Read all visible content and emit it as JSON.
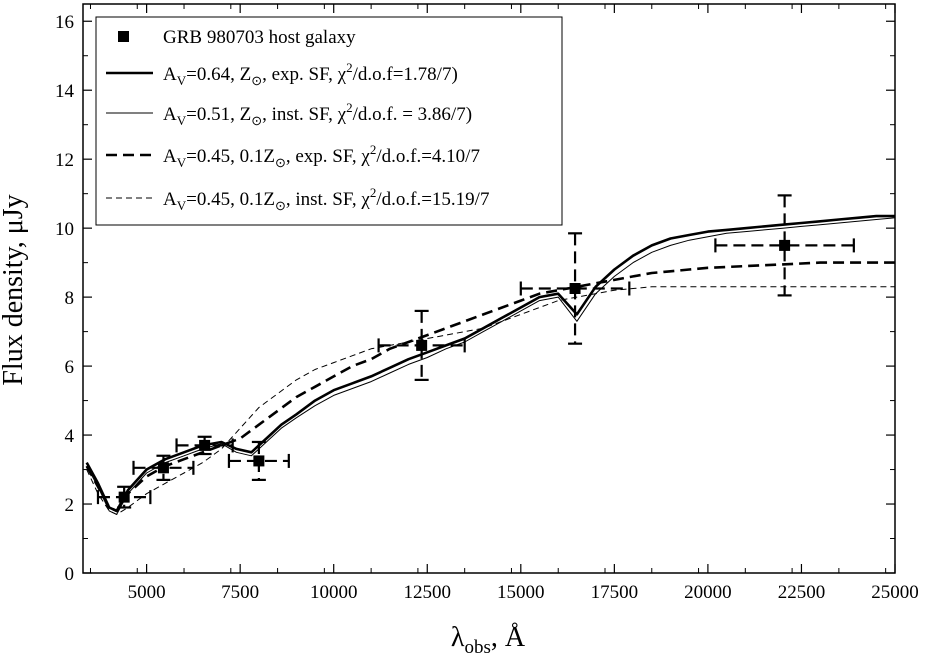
{
  "chart_data": {
    "type": "line",
    "xlabel": "λobs, Å",
    "ylabel": "Flux density, μJy",
    "xlim": [
      3300,
      25000
    ],
    "ylim": [
      0,
      16.5
    ],
    "xticks": [
      5000,
      7500,
      10000,
      12500,
      15000,
      17500,
      20000,
      22500,
      25000
    ],
    "yticks": [
      0,
      2,
      4,
      6,
      8,
      10,
      12,
      14,
      16
    ],
    "grid": false,
    "legend_position": "top-left",
    "points": {
      "name": "GRB 980703 host galaxy",
      "data": [
        {
          "x": 4400,
          "y": 2.2,
          "xerr": 700,
          "yerr": 0.3
        },
        {
          "x": 5450,
          "y": 3.05,
          "xerr": 800,
          "yerr": 0.35
        },
        {
          "x": 6550,
          "y": 3.7,
          "xerr": 750,
          "yerr": 0.25
        },
        {
          "x": 8000,
          "y": 3.25,
          "xerr": 800,
          "yerr": 0.55
        },
        {
          "x": 12350,
          "y": 6.6,
          "xerr": 1150,
          "yerr": 1.0
        },
        {
          "x": 16450,
          "y": 8.25,
          "xerr": 1450,
          "yerr": 1.6
        },
        {
          "x": 22050,
          "y": 9.5,
          "xerr": 1850,
          "yerr": 1.45
        }
      ]
    },
    "series": [
      {
        "name": "AV=0.64, Z⊙, exp. SF, χ2/d.o.f=1.78/7)",
        "style": "thick-solid",
        "x": [
          3400,
          3700,
          4000,
          4200,
          4500,
          5000,
          5500,
          6000,
          6500,
          7000,
          7400,
          7800,
          8200,
          8600,
          9000,
          9500,
          10000,
          10500,
          11000,
          11500,
          12000,
          12500,
          13000,
          13500,
          14000,
          14500,
          15000,
          15500,
          16000,
          16500,
          17000,
          17500,
          18000,
          18500,
          19000,
          19500,
          20000,
          20500,
          21000,
          21500,
          22000,
          22500,
          23000,
          23500,
          24000,
          24500,
          25000
        ],
        "y": [
          3.2,
          2.6,
          1.9,
          1.8,
          2.4,
          3.0,
          3.3,
          3.5,
          3.7,
          3.8,
          3.6,
          3.5,
          3.9,
          4.3,
          4.6,
          5.0,
          5.3,
          5.5,
          5.7,
          5.95,
          6.2,
          6.4,
          6.6,
          6.8,
          7.1,
          7.4,
          7.7,
          8.0,
          8.1,
          7.5,
          8.3,
          8.8,
          9.2,
          9.5,
          9.7,
          9.8,
          9.9,
          9.95,
          10.0,
          10.05,
          10.1,
          10.15,
          10.2,
          10.25,
          10.3,
          10.35,
          10.35
        ]
      },
      {
        "name": "AV=0.51, Z⊙, inst. SF, χ2/d.o.f. = 3.86/7)",
        "style": "thin-solid",
        "x": [
          3400,
          3700,
          4000,
          4200,
          4500,
          5000,
          5500,
          6000,
          6500,
          7000,
          7400,
          7800,
          8200,
          8600,
          9000,
          9500,
          10000,
          10500,
          11000,
          11500,
          12000,
          12500,
          13000,
          13500,
          14000,
          14500,
          15000,
          15500,
          16000,
          16500,
          17000,
          17500,
          18000,
          18500,
          19000,
          19500,
          20000,
          20500,
          21000,
          21500,
          22000,
          22500,
          23000,
          23500,
          24000,
          24500,
          25000
        ],
        "y": [
          3.1,
          2.5,
          1.8,
          1.7,
          2.3,
          2.9,
          3.2,
          3.4,
          3.6,
          3.75,
          3.5,
          3.4,
          3.8,
          4.2,
          4.5,
          4.85,
          5.15,
          5.35,
          5.55,
          5.8,
          6.05,
          6.25,
          6.5,
          6.7,
          7.0,
          7.3,
          7.6,
          7.9,
          8.0,
          7.3,
          8.1,
          8.6,
          9.0,
          9.3,
          9.5,
          9.65,
          9.75,
          9.85,
          9.9,
          9.95,
          10.0,
          10.05,
          10.1,
          10.15,
          10.2,
          10.25,
          10.3
        ]
      },
      {
        "name": "AV=0.45, 0.1Z⊙, exp. SF, χ2/d.o.f.=4.10/7",
        "style": "thick-dashed",
        "x": [
          3400,
          3700,
          4000,
          4200,
          4500,
          5000,
          5500,
          6000,
          6500,
          7000,
          7500,
          8000,
          8500,
          9000,
          9500,
          10000,
          10500,
          11000,
          11500,
          12000,
          12500,
          13000,
          13500,
          14000,
          14500,
          15000,
          15500,
          16000,
          16500,
          17000,
          17500,
          18000,
          18500,
          19000,
          19500,
          20000,
          21000,
          22000,
          23000,
          24000,
          25000
        ],
        "y": [
          3.1,
          2.5,
          1.9,
          1.8,
          2.3,
          2.8,
          3.1,
          3.3,
          3.5,
          3.7,
          3.9,
          4.3,
          4.7,
          5.1,
          5.4,
          5.7,
          6.0,
          6.2,
          6.5,
          6.7,
          6.9,
          7.1,
          7.3,
          7.5,
          7.7,
          7.9,
          8.1,
          8.2,
          8.3,
          8.4,
          8.5,
          8.6,
          8.7,
          8.75,
          8.8,
          8.85,
          8.9,
          8.95,
          9.0,
          9.0,
          9.0
        ]
      },
      {
        "name": "AV=0.45, 0.1Z⊙, inst. SF, χ2/d.o.f.=15.19/7",
        "style": "thin-dashed",
        "x": [
          3400,
          3700,
          4000,
          4200,
          4500,
          5000,
          5500,
          6000,
          6500,
          7000,
          7500,
          8000,
          8500,
          9000,
          9500,
          10000,
          10500,
          11000,
          11500,
          12000,
          12500,
          13000,
          13500,
          14000,
          14500,
          15000,
          15500,
          16000,
          16500,
          17000,
          17500,
          18000,
          18500,
          19000,
          19500,
          20000,
          21000,
          22000,
          23000,
          24000,
          25000
        ],
        "y": [
          3.0,
          2.3,
          1.8,
          1.7,
          1.9,
          2.3,
          2.6,
          2.9,
          3.2,
          3.6,
          4.2,
          4.8,
          5.2,
          5.6,
          5.9,
          6.1,
          6.3,
          6.5,
          6.6,
          6.7,
          6.8,
          6.9,
          7.0,
          7.1,
          7.3,
          7.5,
          7.7,
          7.9,
          8.0,
          8.1,
          8.2,
          8.25,
          8.3,
          8.3,
          8.3,
          8.3,
          8.3,
          8.3,
          8.3,
          8.3,
          8.3
        ]
      }
    ]
  },
  "legend": {
    "points_label": "GRB 980703 host galaxy",
    "entries": [
      {
        "pre": "A",
        "sub1": "V",
        "mid": "=0.64, Z",
        "sun": "⊙",
        "post": ", exp. SF, χ",
        "sup": "2",
        "tail": "/d.o.f=1.78/7)"
      },
      {
        "pre": "A",
        "sub1": "V",
        "mid": "=0.51, Z",
        "sun": "⊙",
        "post": ", inst. SF, χ",
        "sup": "2",
        "tail": "/d.o.f. = 3.86/7)"
      },
      {
        "pre": "A",
        "sub1": "V",
        "mid": "=0.45, 0.1Z",
        "sun": "⊙",
        "post": ", exp. SF, χ",
        "sup": "2",
        "tail": "/d.o.f.=4.10/7"
      },
      {
        "pre": "A",
        "sub1": "V",
        "mid": "=0.45, 0.1Z",
        "sun": "⊙",
        "post": ", inst. SF, χ",
        "sup": "2",
        "tail": "/d.o.f.=15.19/7"
      }
    ]
  },
  "axes": {
    "ylabel": "Flux density, μJy",
    "xlabel_main": "λ",
    "xlabel_sub": "obs",
    "xlabel_tail": ", Å"
  }
}
